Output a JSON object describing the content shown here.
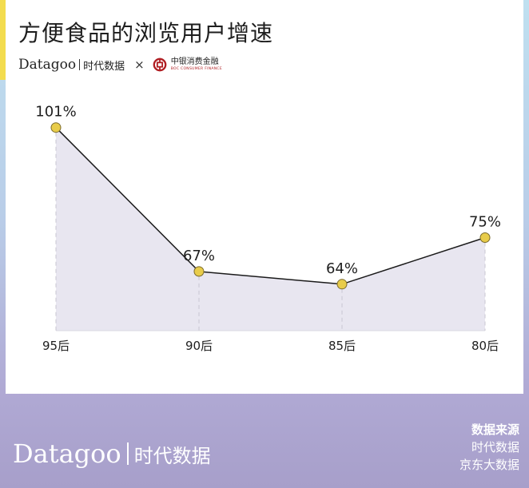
{
  "title": "方便食品的浏览用户增速",
  "header_logos": {
    "brand_en": "Datagoo",
    "brand_cn": "时代数据",
    "times": "×",
    "partner_cn": "中银消费金融",
    "partner_en": "BOC CONSUMER FINANCE"
  },
  "colors": {
    "accent": "#f3dc4e",
    "marker": "#e8cc4a",
    "line": "#1a1a1a",
    "area_fill": "#e8e6f0",
    "partner_red": "#b01e23"
  },
  "chart_data": {
    "type": "area",
    "categories": [
      "95后",
      "90后",
      "85后",
      "80后"
    ],
    "values": [
      101,
      67,
      64,
      75
    ],
    "value_labels": [
      "101%",
      "67%",
      "64%",
      "75%"
    ],
    "title": "方便食品的浏览用户增速",
    "xlabel": "",
    "ylabel": "",
    "unit": "%",
    "ylim": [
      52,
      104
    ],
    "grid": false,
    "legend": "none",
    "markers": true
  },
  "footer": {
    "brand_en": "Datagoo",
    "brand_cn": "时代数据",
    "source_title": "数据来源",
    "sources": [
      "时代数据",
      "京东大数据"
    ]
  }
}
